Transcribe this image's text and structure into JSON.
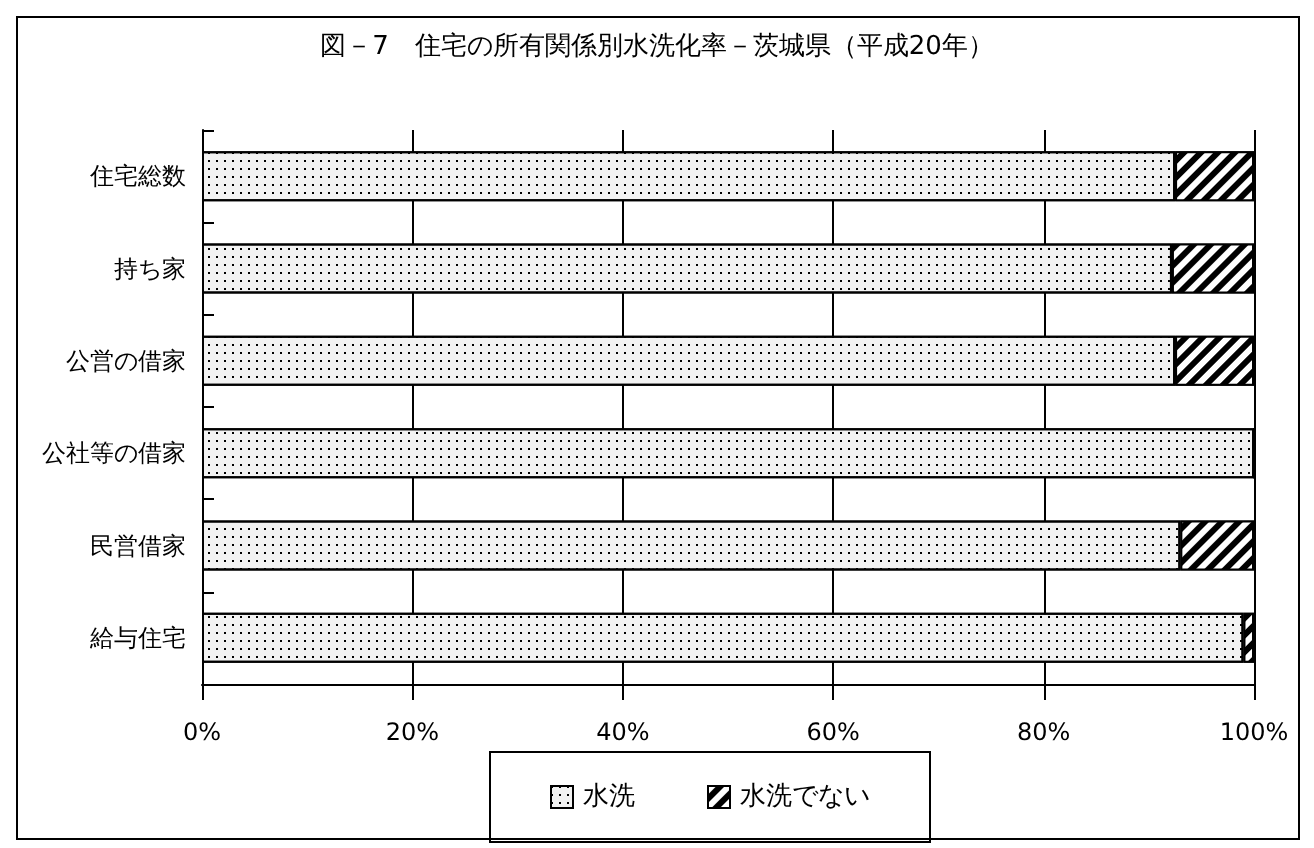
{
  "chart_data": {
    "type": "bar",
    "orientation": "horizontal",
    "stacked": true,
    "title": "図－7　住宅の所有関係別水洗化率－茨城県（平成20年）",
    "categories": [
      "住宅総数",
      "持ち家",
      "公営の借家",
      "公社等の借家",
      "民営借家",
      "給与住宅"
    ],
    "series": [
      {
        "name": "水洗",
        "color": "#f2f2f2",
        "values": [
          92.5,
          92.2,
          92.5,
          100,
          93.0,
          99.0
        ]
      },
      {
        "name": "水洗でない",
        "color": "#000000",
        "values": [
          7.5,
          7.8,
          7.5,
          0,
          7.0,
          1.0
        ]
      }
    ],
    "xlim": [
      0,
      100
    ],
    "xticks": [
      {
        "value": 0,
        "label": "0%"
      },
      {
        "value": 20,
        "label": "20%"
      },
      {
        "value": 40,
        "label": "40%"
      },
      {
        "value": 60,
        "label": "60%"
      },
      {
        "value": 80,
        "label": "80%"
      },
      {
        "value": 100,
        "label": "100%"
      }
    ],
    "grid": "x",
    "legend": "bottom"
  }
}
